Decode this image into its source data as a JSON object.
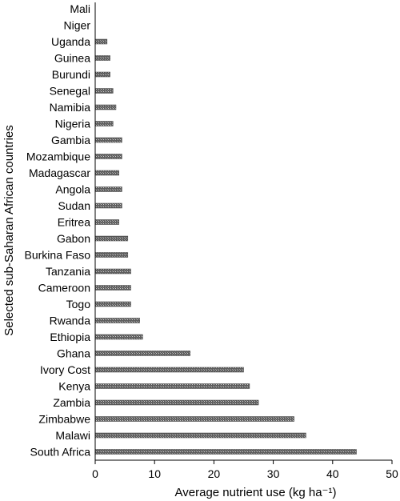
{
  "chart_data": {
    "type": "bar",
    "orientation": "horizontal",
    "categories": [
      "Mali",
      "Niger",
      "Uganda",
      "Guinea",
      "Burundi",
      "Senegal",
      "Namibia",
      "Nigeria",
      "Gambia",
      "Mozambique",
      "Madagascar",
      "Angola",
      "Sudan",
      "Eritrea",
      "Gabon",
      "Burkina Faso",
      "Tanzania",
      "Cameroon",
      "Togo",
      "Rwanda",
      "Ethiopia",
      "Ghana",
      "Ivory Cost",
      "Kenya",
      "Zambia",
      "Zimbabwe",
      "Malawi",
      "South Africa"
    ],
    "values": [
      0,
      0,
      2,
      2.5,
      2.5,
      3,
      3.5,
      3,
      4.5,
      4.5,
      4,
      4.5,
      4.5,
      4,
      5.5,
      5.5,
      6,
      6,
      6,
      7.5,
      8,
      16,
      25,
      26,
      27.5,
      33.5,
      35.5,
      44
    ],
    "xlabel": "Average nutrient use (kg ha⁻¹)",
    "ylabel": "Selected sub-Saharan African countries",
    "xlim": [
      0,
      50
    ],
    "xticks": [
      "0",
      "10",
      "20",
      "30",
      "40",
      "50"
    ],
    "bar_color": "#6b6b6b",
    "grid": false
  }
}
